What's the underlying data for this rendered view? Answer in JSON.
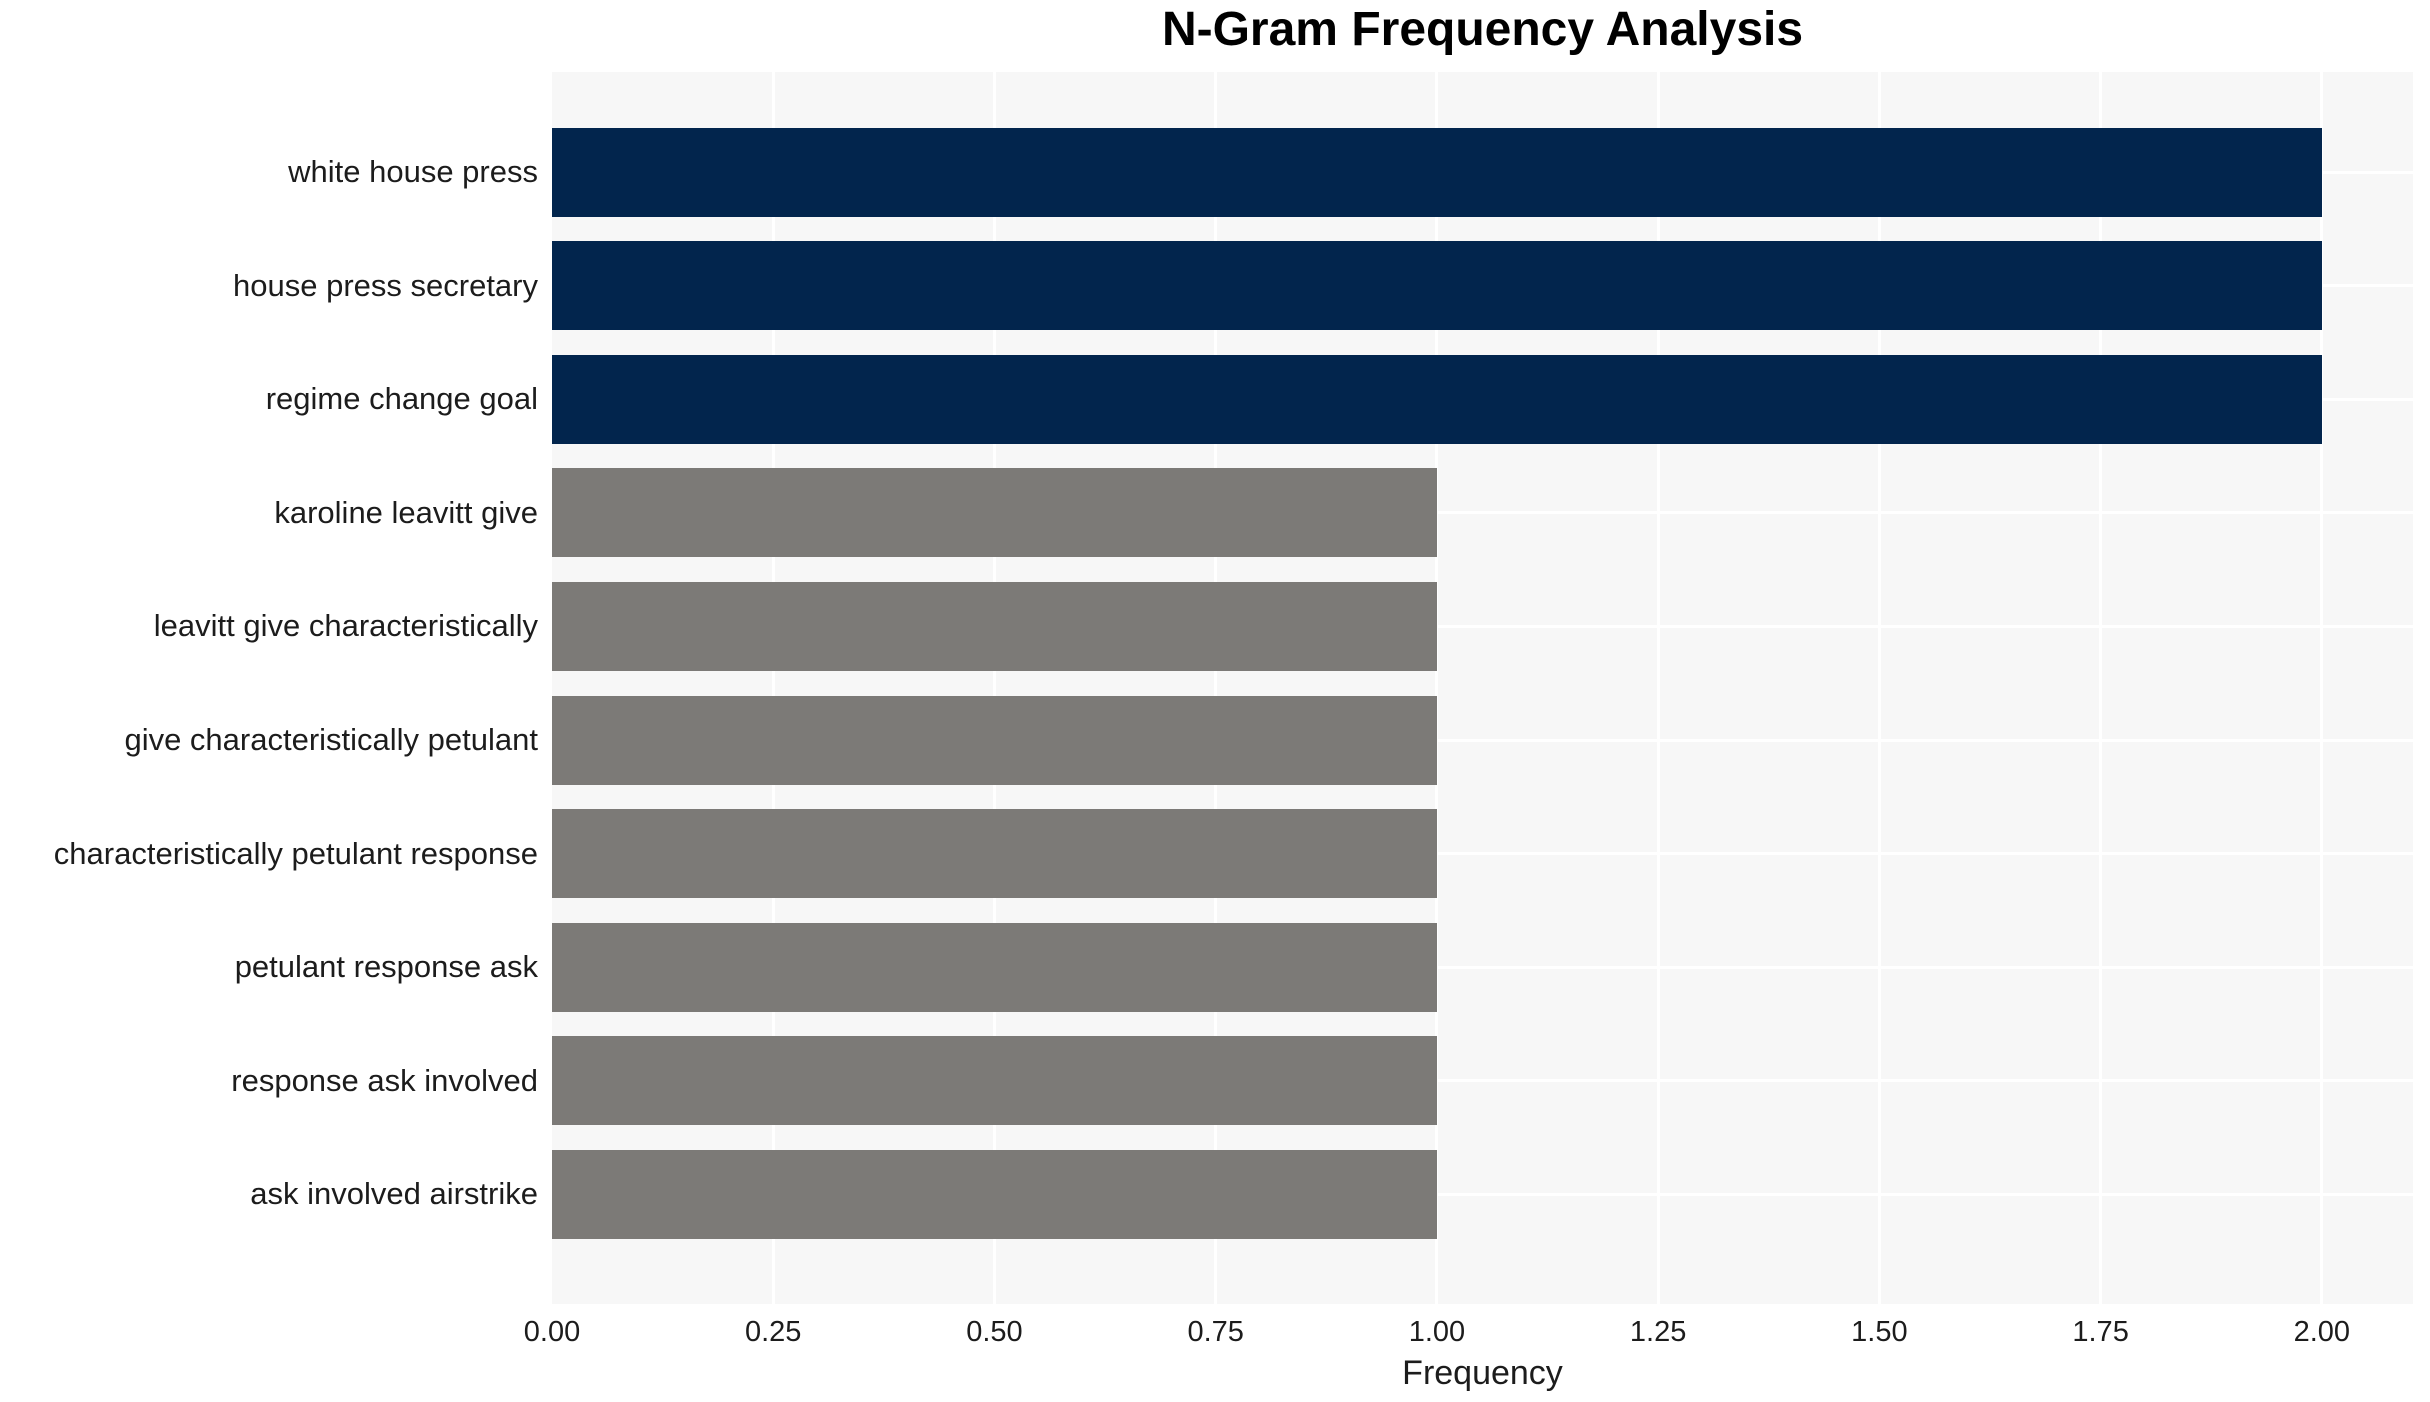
{
  "chart_data": {
    "type": "bar",
    "orientation": "horizontal",
    "title": "N-Gram Frequency Analysis",
    "xlabel": "Frequency",
    "ylabel": "",
    "categories": [
      "white house press",
      "house press secretary",
      "regime change goal",
      "karoline leavitt give",
      "leavitt give characteristically",
      "give characteristically petulant",
      "characteristically petulant response",
      "petulant response ask",
      "response ask involved",
      "ask involved airstrike"
    ],
    "values": [
      2,
      2,
      2,
      1,
      1,
      1,
      1,
      1,
      1,
      1
    ],
    "bar_colors": [
      "#02254d",
      "#02254d",
      "#02254d",
      "#7c7a77",
      "#7c7a77",
      "#7c7a77",
      "#7c7a77",
      "#7c7a77",
      "#7c7a77",
      "#7c7a77"
    ],
    "xlim": [
      0,
      2.103
    ],
    "xticks": [
      "0.00",
      "0.25",
      "0.50",
      "0.75",
      "1.00",
      "1.25",
      "1.50",
      "1.75",
      "2.00"
    ],
    "xtick_values": [
      0,
      0.25,
      0.5,
      0.75,
      1.0,
      1.25,
      1.5,
      1.75,
      2.0
    ],
    "grid": true,
    "legend": null,
    "colors": {
      "bar_high": "#02254d",
      "bar_low": "#7c7a77",
      "plot_background": "#f7f7f7",
      "gridline": "#ffffff",
      "title_color": "#000000",
      "tick_label_color": "#1c1c1c"
    }
  }
}
